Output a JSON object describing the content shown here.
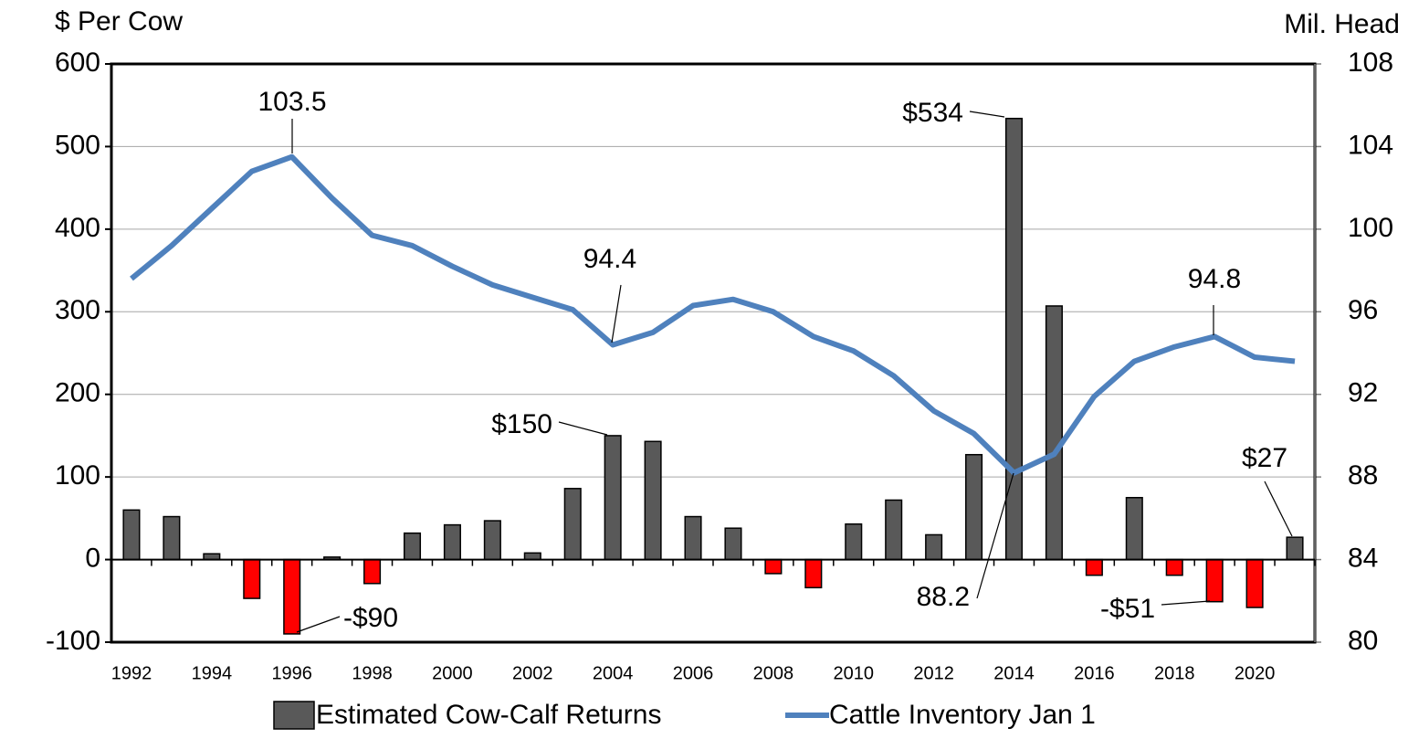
{
  "chart_data": {
    "type": "bar_line",
    "ylabel": "$ Per Cow",
    "y2label": "Mil. Head",
    "categories": [
      "1992",
      null,
      "1994",
      null,
      "1996",
      null,
      "1998",
      null,
      "2000",
      null,
      "2002",
      null,
      "2004",
      null,
      "2006",
      null,
      "2008",
      null,
      "2010",
      null,
      "2012",
      null,
      "2014",
      null,
      "2016",
      null,
      "2018",
      null,
      "2020",
      null
    ],
    "series": [
      {
        "name": "Estimated Cow-Calf Returns",
        "type": "bar",
        "color": "#595959",
        "negative_color": "#ff0000",
        "values": [
          60,
          52,
          7,
          -47,
          -90,
          3,
          -29,
          32,
          42,
          47,
          8,
          86,
          150,
          143,
          52,
          38,
          -17,
          -34,
          43,
          72,
          30,
          127,
          534,
          307,
          -19,
          75,
          -19,
          -51,
          -58,
          27
        ],
        "value_labels": [
          null,
          null,
          null,
          null,
          "-$90",
          null,
          null,
          null,
          null,
          null,
          null,
          null,
          "$150",
          null,
          null,
          null,
          null,
          null,
          null,
          null,
          null,
          null,
          "$534",
          null,
          null,
          null,
          null,
          "-$51",
          null,
          "$27"
        ]
      },
      {
        "name": "Cattle Inventory Jan 1",
        "type": "line",
        "axis": "y2",
        "color": "#4f81bd",
        "values": [
          97.6,
          99.2,
          101.0,
          102.8,
          103.5,
          101.5,
          99.7,
          99.2,
          98.2,
          97.3,
          96.7,
          96.1,
          94.4,
          95.0,
          96.3,
          96.6,
          96.0,
          94.8,
          94.1,
          92.9,
          91.2,
          90.1,
          88.2,
          89.1,
          91.9,
          93.6,
          94.3,
          94.8,
          93.8,
          93.6
        ],
        "value_labels": [
          null,
          null,
          null,
          null,
          "103.5",
          null,
          null,
          null,
          null,
          null,
          null,
          null,
          "94.4",
          null,
          null,
          null,
          null,
          null,
          null,
          null,
          null,
          null,
          "88.2",
          null,
          null,
          null,
          null,
          "94.8",
          null,
          null
        ]
      }
    ],
    "ylim": [
      -100,
      600
    ],
    "yticks": [
      -100,
      0,
      100,
      200,
      300,
      400,
      500,
      600
    ],
    "y2lim": [
      80,
      108
    ],
    "y2ticks": [
      80,
      84,
      88,
      92,
      96,
      100,
      104,
      108
    ],
    "grid": true,
    "legend": "bottom"
  }
}
